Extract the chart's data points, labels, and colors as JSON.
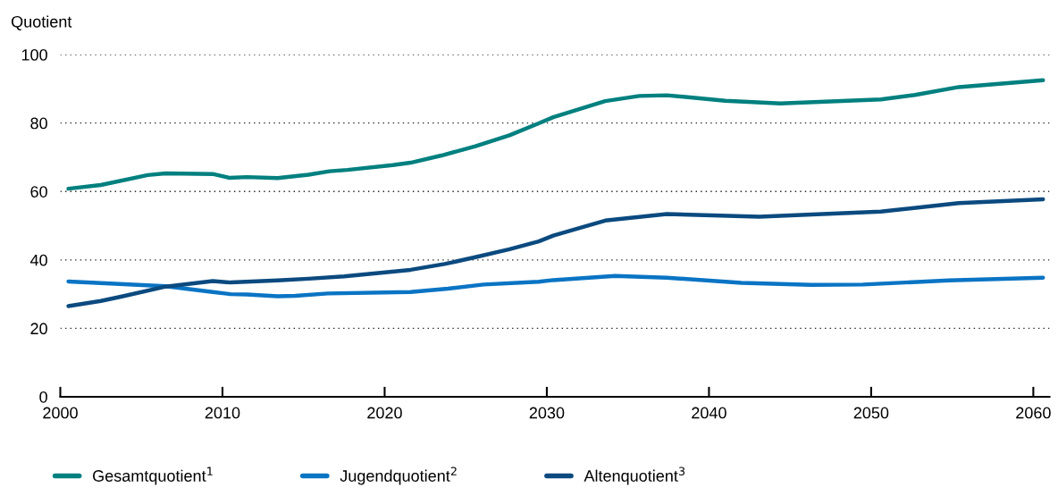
{
  "chart_data": {
    "type": "line",
    "ylabel": "Quotient",
    "xlim": [
      2000,
      2061
    ],
    "xticks": [
      2000,
      2010,
      2020,
      2030,
      2040,
      2050,
      2060
    ],
    "ylim": [
      0,
      100
    ],
    "yticks": [
      0,
      20,
      40,
      60,
      80,
      100
    ],
    "grid": "y",
    "legend": "bottom",
    "marker": "none",
    "line_style": "solid",
    "series": [
      {
        "name": "Gesamtquotient$^{1}$",
        "color": "#00807f",
        "x": [
          2000.5,
          2002.5,
          2005.4,
          2006.5,
          2009.4,
          2010.4,
          2011.5,
          2013.4,
          2015.3,
          2016.6,
          2017.7,
          2020.5,
          2021.6,
          2023.5,
          2025.6,
          2027.7,
          2029.5,
          2030.4,
          2033.6,
          2035.7,
          2037.4,
          2041.0,
          2044.4,
          2050.6,
          2052.7,
          2055.4,
          2060.6
        ],
        "values": [
          60.8,
          61.9,
          64.8,
          65.3,
          65.1,
          64.0,
          64.2,
          63.9,
          64.9,
          65.9,
          66.3,
          67.7,
          68.4,
          70.5,
          73.2,
          76.4,
          79.9,
          81.7,
          86.4,
          87.9,
          88.1,
          86.5,
          85.7,
          86.9,
          88.2,
          90.5,
          92.5
        ]
      },
      {
        "name": "Jugendquotient$^{2}$",
        "color": "#0a74c4",
        "x": [
          2000.5,
          2006.5,
          2009.4,
          2010.5,
          2011.5,
          2013.4,
          2014.5,
          2016.5,
          2021.6,
          2023.9,
          2026.1,
          2029.5,
          2030.4,
          2034.2,
          2037.4,
          2042.0,
          2046.3,
          2049.5,
          2054.8,
          2060.6
        ],
        "values": [
          33.7,
          32.3,
          30.6,
          30.0,
          29.9,
          29.4,
          29.5,
          30.2,
          30.6,
          31.6,
          32.8,
          33.6,
          34.1,
          35.3,
          34.8,
          33.3,
          32.7,
          32.8,
          34.0,
          34.8
        ]
      },
      {
        "name": "Altenquotient$^{3}$",
        "color": "#0b4a7f",
        "x": [
          2000.5,
          2002.5,
          2003.8,
          2006.5,
          2009.4,
          2010.5,
          2013.4,
          2015.3,
          2017.5,
          2021.6,
          2023.7,
          2025.6,
          2027.7,
          2029.5,
          2030.4,
          2033.6,
          2037.4,
          2043.1,
          2050.6,
          2055.4,
          2060.6
        ],
        "values": [
          26.5,
          28.0,
          29.3,
          32.2,
          33.8,
          33.4,
          34.0,
          34.5,
          35.2,
          37.1,
          38.8,
          40.8,
          43.1,
          45.4,
          47.1,
          51.5,
          53.4,
          52.6,
          54.1,
          56.6,
          57.7
        ]
      }
    ]
  }
}
